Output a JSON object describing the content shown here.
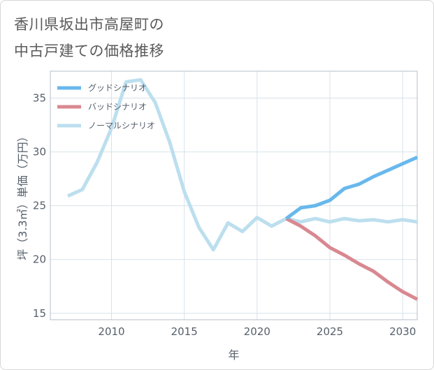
{
  "title_lines": [
    "香川県坂出市高屋町の",
    "中古戸建ての価格推移"
  ],
  "chart_data": {
    "type": "line",
    "title": "香川県坂出市高屋町の中古戸建ての価格推移",
    "xlabel": "年",
    "ylabel": "坪（3.3㎡）単価（万円）",
    "xlim": [
      2005.8,
      2031
    ],
    "ylim": [
      14.4,
      37.5
    ],
    "xticks": [
      2010,
      2015,
      2020,
      2025,
      2030
    ],
    "yticks": [
      15,
      20,
      25,
      30,
      35
    ],
    "grid": true,
    "legend_position": "top-left",
    "colors": {
      "good": "#68b8ec",
      "bad": "#d98890",
      "normal": "#bcdfee"
    },
    "series": [
      {
        "key": "good",
        "name": "グッドシナリオ",
        "x": [
          2022,
          2023,
          2024,
          2025,
          2026,
          2027,
          2028,
          2029,
          2030,
          2031
        ],
        "y": [
          23.8,
          24.8,
          25.0,
          25.5,
          26.6,
          27.0,
          27.7,
          28.3,
          28.9,
          29.5
        ]
      },
      {
        "key": "bad",
        "name": "バッドシナリオ",
        "x": [
          2022,
          2023,
          2024,
          2025,
          2026,
          2027,
          2028,
          2029,
          2030,
          2031
        ],
        "y": [
          23.8,
          23.1,
          22.2,
          21.1,
          20.4,
          19.6,
          18.9,
          17.9,
          17.0,
          16.3
        ]
      },
      {
        "key": "normal",
        "name": "ノーマルシナリオ",
        "x": [
          2007,
          2008,
          2009,
          2010,
          2011,
          2012,
          2013,
          2014,
          2015,
          2016,
          2017,
          2018,
          2019,
          2020,
          2021,
          2022,
          2023,
          2024,
          2025,
          2026,
          2027,
          2028,
          2029,
          2030,
          2031
        ],
        "y": [
          25.9,
          26.5,
          29.0,
          32.2,
          36.5,
          36.7,
          34.6,
          30.9,
          26.3,
          23.0,
          20.9,
          23.4,
          22.6,
          23.9,
          23.1,
          23.8,
          23.5,
          23.8,
          23.5,
          23.8,
          23.6,
          23.7,
          23.5,
          23.7,
          23.5
        ]
      }
    ]
  }
}
